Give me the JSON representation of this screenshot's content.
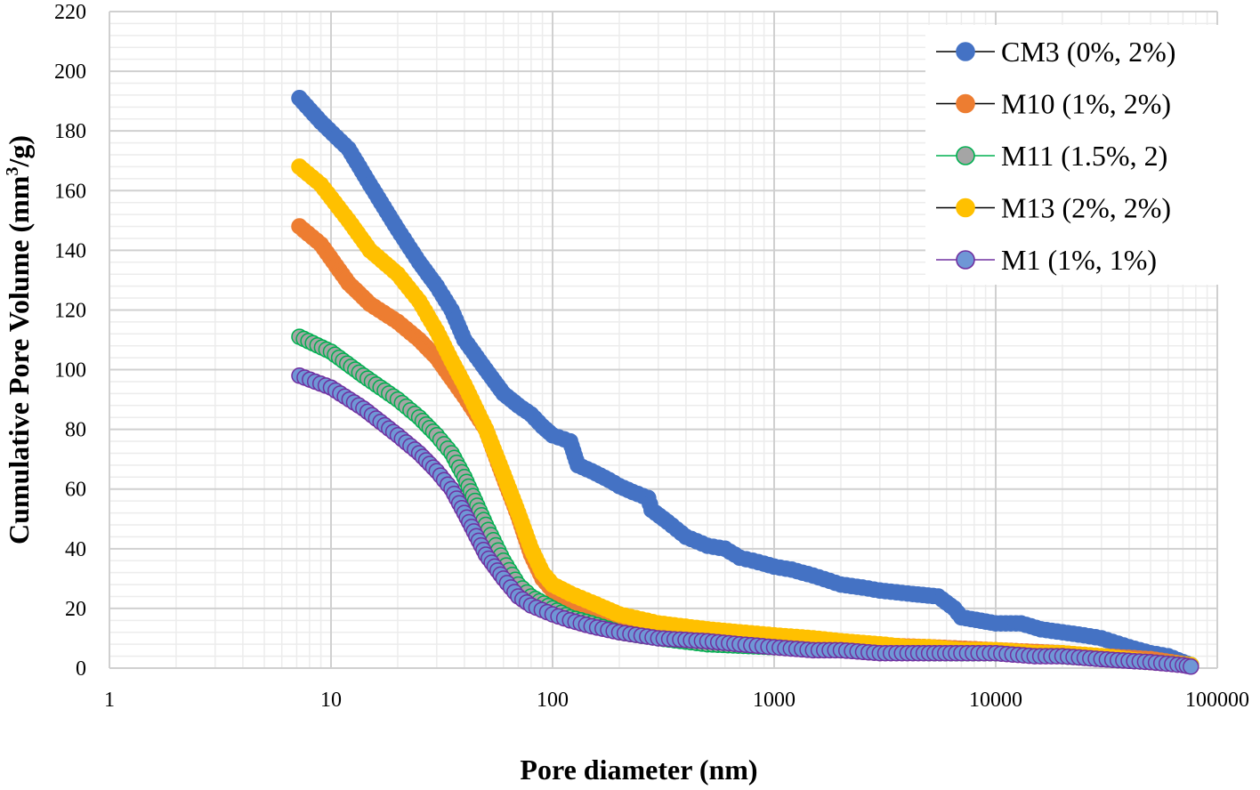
{
  "chart_data": {
    "type": "scatter",
    "x_scale": "log",
    "xlabel": "Pore diameter (nm)",
    "ylabel": "Cumulative Pore Volume (mm³/g)",
    "ylabel_parts": {
      "before": "Cumulative Pore Volume (mm",
      "sup": "3",
      "after": "/g)"
    },
    "xlim": [
      1,
      100000
    ],
    "ylim": [
      0,
      220
    ],
    "x_ticks": [
      1,
      10,
      100,
      1000,
      10000,
      100000
    ],
    "x_tick_labels": [
      "1",
      "10",
      "100",
      "1000",
      "10000",
      "100000"
    ],
    "y_ticks": [
      0,
      20,
      40,
      60,
      80,
      100,
      120,
      140,
      160,
      180,
      200,
      220
    ],
    "y_tick_labels": [
      "0",
      "20",
      "40",
      "60",
      "80",
      "100",
      "120",
      "140",
      "160",
      "180",
      "200",
      "220"
    ],
    "grid": true,
    "legend_position": "top-right",
    "series": [
      {
        "name": "CM3 (0%, 2%)",
        "marker_color": "#4472C4",
        "marker_edge": "#4472C4",
        "line_color": "#000000",
        "points": [
          [
            7.2,
            191
          ],
          [
            9,
            183
          ],
          [
            12,
            174
          ],
          [
            15,
            162
          ],
          [
            20,
            147
          ],
          [
            25,
            136
          ],
          [
            30,
            128
          ],
          [
            35,
            120
          ],
          [
            40,
            110
          ],
          [
            50,
            100
          ],
          [
            60,
            92
          ],
          [
            70,
            88
          ],
          [
            80,
            85
          ],
          [
            90,
            81
          ],
          [
            100,
            78
          ],
          [
            120,
            76
          ],
          [
            130,
            68
          ],
          [
            150,
            66
          ],
          [
            180,
            63
          ],
          [
            200,
            61
          ],
          [
            230,
            59
          ],
          [
            270,
            57
          ],
          [
            280,
            53
          ],
          [
            330,
            49
          ],
          [
            400,
            44
          ],
          [
            500,
            41
          ],
          [
            600,
            40
          ],
          [
            700,
            37
          ],
          [
            800,
            36
          ],
          [
            900,
            35
          ],
          [
            1000,
            34
          ],
          [
            1200,
            33
          ],
          [
            1500,
            31
          ],
          [
            2000,
            28
          ],
          [
            2500,
            27
          ],
          [
            3000,
            26
          ],
          [
            4000,
            25
          ],
          [
            5500,
            24
          ],
          [
            6500,
            20
          ],
          [
            7000,
            17
          ],
          [
            10000,
            15
          ],
          [
            13000,
            15
          ],
          [
            16000,
            13
          ],
          [
            20000,
            12
          ],
          [
            25000,
            11
          ],
          [
            30000,
            10
          ],
          [
            40000,
            7
          ],
          [
            50000,
            5
          ],
          [
            60000,
            4
          ],
          [
            70000,
            2
          ],
          [
            76000,
            1
          ]
        ]
      },
      {
        "name": "M10 (1%, 2%)",
        "marker_color": "#ED7D31",
        "marker_edge": "#ED7D31",
        "line_color": "#000000",
        "points": [
          [
            7.2,
            148
          ],
          [
            9,
            142
          ],
          [
            12,
            129
          ],
          [
            15,
            122
          ],
          [
            20,
            116
          ],
          [
            25,
            110
          ],
          [
            30,
            104
          ],
          [
            35,
            97
          ],
          [
            40,
            91
          ],
          [
            50,
            80
          ],
          [
            60,
            64
          ],
          [
            70,
            51
          ],
          [
            80,
            38
          ],
          [
            90,
            30
          ],
          [
            100,
            26
          ],
          [
            120,
            22
          ],
          [
            150,
            18
          ],
          [
            200,
            15
          ],
          [
            300,
            13
          ],
          [
            500,
            12
          ],
          [
            1000,
            10
          ],
          [
            2000,
            8
          ],
          [
            5000,
            7
          ],
          [
            10000,
            6
          ],
          [
            20000,
            5
          ],
          [
            30000,
            4
          ],
          [
            50000,
            3
          ],
          [
            76000,
            1
          ]
        ]
      },
      {
        "name": "M11 (1.5%, 2)",
        "marker_color": "#A5A5A5",
        "marker_edge": "#00B050",
        "line_color": "#00B050",
        "points": [
          [
            7.2,
            111
          ],
          [
            10,
            106
          ],
          [
            14,
            98
          ],
          [
            20,
            90
          ],
          [
            25,
            84
          ],
          [
            30,
            78
          ],
          [
            35,
            72
          ],
          [
            40,
            64
          ],
          [
            50,
            48
          ],
          [
            60,
            36
          ],
          [
            70,
            28
          ],
          [
            80,
            24
          ],
          [
            100,
            20
          ],
          [
            120,
            17
          ],
          [
            150,
            15
          ],
          [
            200,
            12
          ],
          [
            300,
            10
          ],
          [
            500,
            8
          ],
          [
            1000,
            7
          ],
          [
            2000,
            6
          ],
          [
            5000,
            5
          ],
          [
            10000,
            5
          ],
          [
            20000,
            4
          ],
          [
            50000,
            2
          ],
          [
            76000,
            1
          ]
        ]
      },
      {
        "name": "M13 (2%, 2%)",
        "marker_color": "#FFC000",
        "marker_edge": "#FFC000",
        "line_color": "#000000",
        "points": [
          [
            7.2,
            168
          ],
          [
            9,
            162
          ],
          [
            12,
            150
          ],
          [
            15,
            140
          ],
          [
            20,
            132
          ],
          [
            25,
            123
          ],
          [
            30,
            113
          ],
          [
            35,
            103
          ],
          [
            40,
            95
          ],
          [
            50,
            80
          ],
          [
            60,
            65
          ],
          [
            70,
            52
          ],
          [
            80,
            40
          ],
          [
            90,
            32
          ],
          [
            100,
            28
          ],
          [
            120,
            25
          ],
          [
            150,
            22
          ],
          [
            200,
            18
          ],
          [
            300,
            15
          ],
          [
            500,
            13
          ],
          [
            700,
            12
          ],
          [
            1000,
            11
          ],
          [
            1500,
            10
          ],
          [
            2000,
            9
          ],
          [
            3000,
            8
          ],
          [
            4000,
            7
          ],
          [
            5000,
            7
          ],
          [
            7000,
            6
          ],
          [
            10000,
            6
          ],
          [
            15000,
            5
          ],
          [
            20000,
            5
          ],
          [
            30000,
            4
          ],
          [
            50000,
            2
          ],
          [
            76000,
            1
          ]
        ]
      },
      {
        "name": "M1 (1%, 1%)",
        "marker_color": "#6F97D6",
        "marker_edge": "#7030A0",
        "line_color": "#7030A0",
        "points": [
          [
            7.2,
            98
          ],
          [
            10,
            94
          ],
          [
            14,
            87
          ],
          [
            20,
            78
          ],
          [
            25,
            72
          ],
          [
            30,
            66
          ],
          [
            35,
            60
          ],
          [
            40,
            52
          ],
          [
            50,
            38
          ],
          [
            60,
            30
          ],
          [
            70,
            24
          ],
          [
            80,
            21
          ],
          [
            100,
            18
          ],
          [
            120,
            16
          ],
          [
            150,
            14
          ],
          [
            200,
            12
          ],
          [
            300,
            10
          ],
          [
            500,
            9
          ],
          [
            700,
            8
          ],
          [
            1000,
            7
          ],
          [
            1500,
            6
          ],
          [
            2000,
            6
          ],
          [
            3000,
            5
          ],
          [
            4000,
            5
          ],
          [
            7000,
            5
          ],
          [
            10000,
            5
          ],
          [
            15000,
            4
          ],
          [
            20000,
            4
          ],
          [
            30000,
            3
          ],
          [
            50000,
            2
          ],
          [
            70000,
            1
          ],
          [
            76000,
            0.5
          ]
        ]
      }
    ]
  }
}
